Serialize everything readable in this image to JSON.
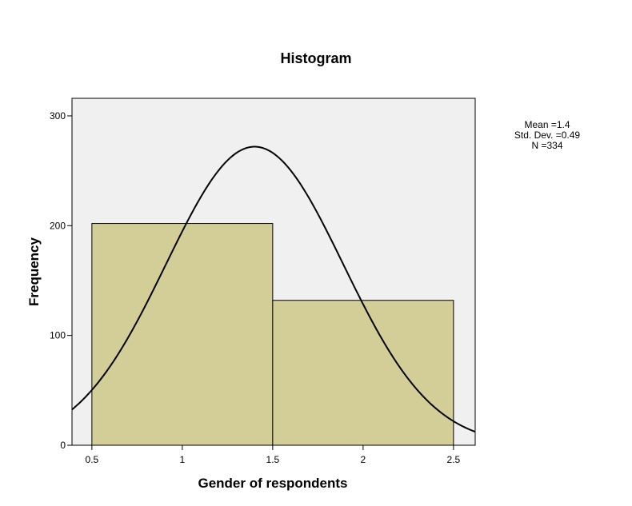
{
  "chart_data": {
    "type": "bar",
    "subtype": "histogram",
    "title": "Histogram",
    "xlabel": "Gender of respondents",
    "ylabel": "Frequency",
    "xlim": [
      0.39,
      2.62
    ],
    "ylim": [
      0,
      316
    ],
    "x_ticks": [
      0.5,
      1,
      1.5,
      2,
      2.5
    ],
    "x_tick_labels": [
      "0.5",
      "1",
      "1.5",
      "2",
      "2.5"
    ],
    "y_ticks": [
      0,
      100,
      200,
      300
    ],
    "y_tick_labels": [
      "0",
      "100",
      "200",
      "300"
    ],
    "bins": [
      {
        "start": 0.5,
        "end": 1.5,
        "value": 202
      },
      {
        "start": 1.5,
        "end": 2.5,
        "value": 132
      }
    ],
    "normal_curve": {
      "mean": 1.4,
      "std_dev": 0.49,
      "n": 334,
      "bin_width": 1
    },
    "stats": {
      "mean": "Mean =1.4",
      "std_dev": "Std. Dev. =0.49",
      "n": "N =334"
    },
    "grid": false,
    "legend": "none",
    "colors": {
      "plot_background": "#f0f0f0",
      "bar_fill": "#d3ce98",
      "bar_stroke": "#000000",
      "curve": "#000000"
    }
  }
}
